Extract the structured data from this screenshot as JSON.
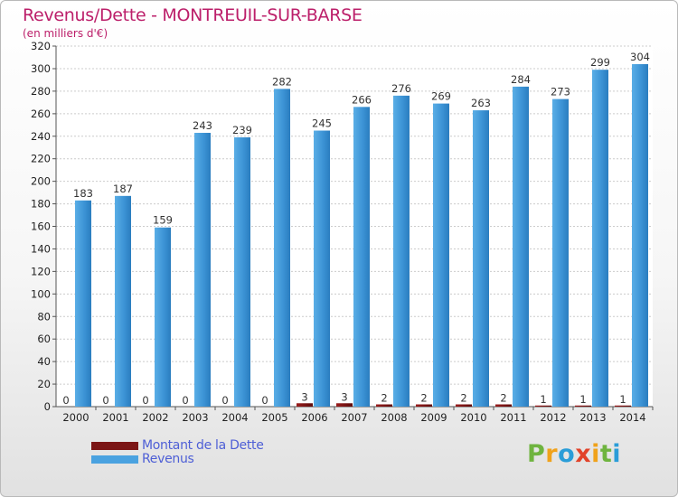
{
  "chart_data": {
    "type": "bar",
    "title": "Revenus/Dette - MONTREUIL-SUR-BARSE",
    "subtitle": "(en milliers d'€)",
    "xlabel": "",
    "ylabel": "",
    "ylim": [
      0,
      320
    ],
    "y_ticks": [
      "0",
      "20",
      "40",
      "60",
      "80",
      "100",
      "120",
      "140",
      "160",
      "180",
      "200",
      "220",
      "240",
      "260",
      "280",
      "300",
      "320"
    ],
    "categories": [
      "2000",
      "2001",
      "2002",
      "2003",
      "2004",
      "2005",
      "2006",
      "2007",
      "2008",
      "2009",
      "2010",
      "2011",
      "2012",
      "2013",
      "2014"
    ],
    "series": [
      {
        "name": "Montant de la Dette",
        "color": "#7b1414",
        "values": [
          0,
          0,
          0,
          0,
          0,
          0,
          3,
          3,
          2,
          2,
          2,
          2,
          1,
          1,
          1
        ]
      },
      {
        "name": "Revenus",
        "color": "#2f86c8",
        "values": [
          183,
          187,
          159,
          243,
          239,
          282,
          245,
          266,
          276,
          269,
          263,
          284,
          273,
          299,
          304
        ]
      }
    ],
    "grid": true,
    "legend": "bottom-left"
  },
  "brand": {
    "letters": [
      "P",
      "r",
      "o",
      "x",
      "i",
      "t",
      "i"
    ],
    "colors": [
      "#6fb43f",
      "#f0a21b",
      "#2a9dd8",
      "#e2432a",
      "#f0a21b",
      "#6fb43f",
      "#2a9dd8"
    ]
  }
}
